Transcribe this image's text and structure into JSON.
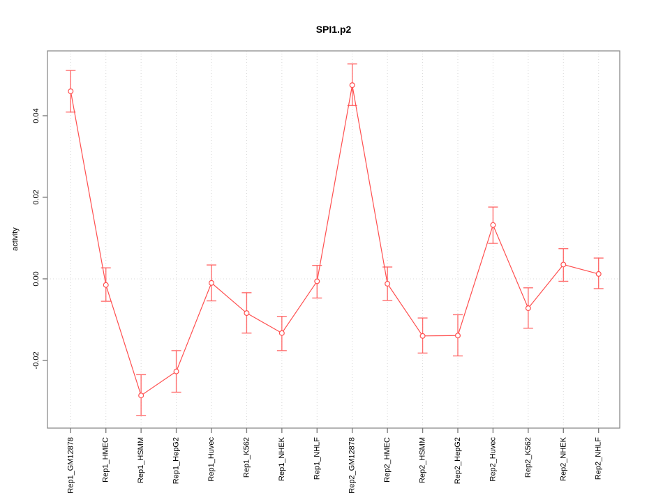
{
  "title": "SPI1.p2",
  "chart_data": {
    "type": "line",
    "title": "SPI1.p2",
    "xlabel": "",
    "ylabel": "activity",
    "categories": [
      "Rep1_GM12878",
      "Rep1_HMEC",
      "Rep1_HSMM",
      "Rep1_HepG2",
      "Rep1_Huvec",
      "Rep1_K562",
      "Rep1_NHEK",
      "Rep1_NHLF",
      "Rep2_GM12878",
      "Rep2_HMEC",
      "Rep2_HSMM",
      "Rep2_HepG2",
      "Rep2_Huvec",
      "Rep2_K562",
      "Rep2_NHEK",
      "Rep2_NHLF"
    ],
    "series": [
      {
        "name": "activity",
        "values": [
          0.046,
          -0.0015,
          -0.0286,
          -0.0227,
          -0.001,
          -0.0084,
          -0.0133,
          -0.0006,
          0.0475,
          -0.0012,
          -0.014,
          -0.0139,
          0.0132,
          -0.0072,
          0.0035,
          0.0012
        ],
        "ci_low": [
          0.0409,
          -0.0055,
          -0.0335,
          -0.0278,
          -0.0054,
          -0.0133,
          -0.0176,
          -0.0047,
          0.0425,
          -0.0053,
          -0.0182,
          -0.0189,
          0.0087,
          -0.0121,
          -0.0006,
          -0.0024
        ],
        "ci_high": [
          0.0511,
          0.0027,
          -0.0235,
          -0.0176,
          0.0034,
          -0.0034,
          -0.0092,
          0.0033,
          0.0527,
          0.0029,
          -0.0096,
          -0.0088,
          0.0176,
          -0.0022,
          0.0074,
          0.0051
        ]
      }
    ],
    "yticks": [
      -0.02,
      0,
      0.02,
      0.04
    ],
    "ytick_labels": [
      "-0.02",
      "0.00",
      "0.02",
      "0.04"
    ],
    "ylim": [
      -0.0366,
      0.0559
    ],
    "grid": {
      "vertical": "dotted-per-category",
      "horizontal_zero_line": true
    },
    "legend": "none",
    "styles": {
      "line_color": "#ff4f4f",
      "error_bar_color": "#ff6060",
      "marker": "open-circle",
      "marker_color": "#ff4f4f",
      "frame_color": "#8c8c8c",
      "tick_color": "#7f7f7f",
      "gridline_color": "#d6d6d6",
      "zero_line_color": "#d9d9d9",
      "text_color": "#000000",
      "background": "#ffffff"
    }
  }
}
